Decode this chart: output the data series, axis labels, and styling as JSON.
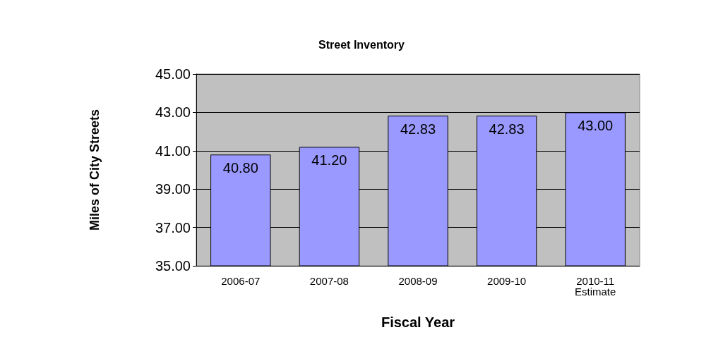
{
  "chart_data": {
    "type": "bar",
    "title": "Street Inventory",
    "xlabel": "Fiscal Year",
    "ylabel": "Miles of City Streets",
    "categories": [
      "2006-07",
      "2007-08",
      "2008-09",
      "2009-10",
      "2010-11\nEstimate"
    ],
    "values": [
      40.8,
      41.2,
      42.83,
      42.83,
      43.0
    ],
    "value_labels": [
      "40.80",
      "41.20",
      "42.83",
      "42.83",
      "43.00"
    ],
    "color": "#9999ff",
    "ylim": [
      35,
      45
    ],
    "yticks": [
      {
        "value": 35,
        "label": "35.00"
      },
      {
        "value": 37,
        "label": "37.00"
      },
      {
        "value": 39,
        "label": "39.00"
      },
      {
        "value": 41,
        "label": "41.00"
      },
      {
        "value": 43,
        "label": "43.00"
      },
      {
        "value": 45,
        "label": "45.00"
      }
    ],
    "grid": true
  }
}
